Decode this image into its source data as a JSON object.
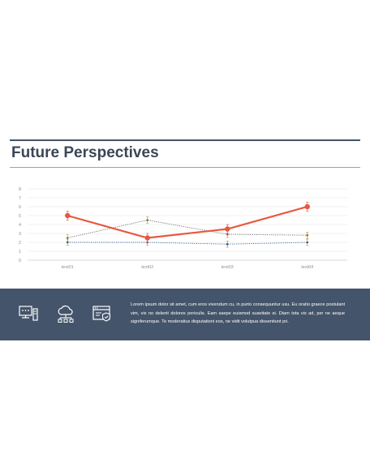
{
  "slide": {
    "title": "Future Perspectives",
    "body_text": "Lorem ipsum dolor sit amet, cum eros vivendum cu, in purto consequuntur usu. Eu oratio graece postulant vim, vix no delenit dolores periculis. Eam saepe euismod suavitate ei. Diam tota vix ad, per ne aeque signiferumque. Te moderatius disputationi eos, ne vidit volutpua dissentiunt pri."
  },
  "colors": {
    "accent": "#e9573f",
    "band": "#44546a",
    "title": "#3b4656"
  },
  "icons": [
    "computer-server-icon",
    "cloud-network-icon",
    "secure-browser-icon"
  ],
  "chart_data": {
    "type": "line",
    "categories": [
      "text01",
      "text02",
      "text03",
      "text04"
    ],
    "series": [
      {
        "values": [
          5.0,
          2.5,
          3.5,
          6.0
        ],
        "color": "#e9573f",
        "style": "solid-with-markers"
      },
      {
        "values": [
          2.5,
          4.5,
          2.9,
          2.8
        ],
        "color": "#6b6b6b",
        "style": "dotted"
      },
      {
        "values": [
          2.0,
          2.0,
          1.8,
          2.0
        ],
        "color": "#2f5f8f",
        "style": "dotted"
      }
    ],
    "error_bars": true,
    "ylim": [
      0,
      8
    ],
    "yticks": [
      "0",
      "1",
      "2",
      "3",
      "4",
      "5",
      "6",
      "7",
      "8"
    ],
    "grid": true,
    "xlabel": "",
    "ylabel": "",
    "title": ""
  }
}
